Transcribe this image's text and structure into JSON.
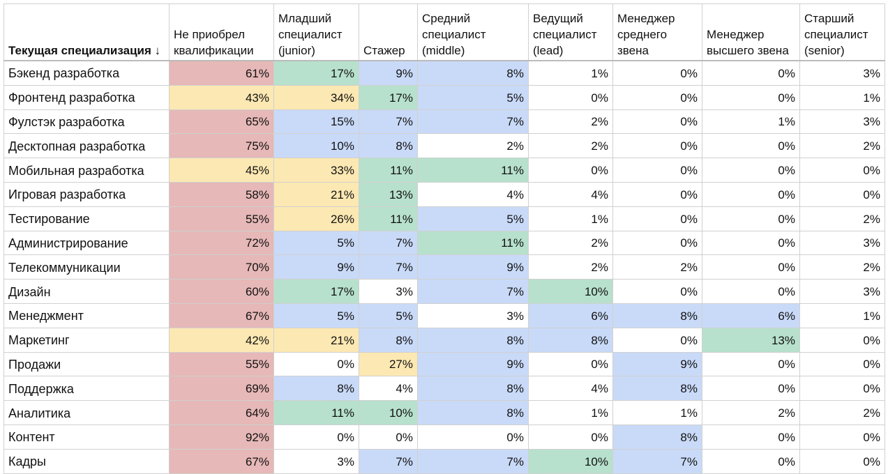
{
  "table": {
    "header": [
      "Текущая специализация ↓",
      "Не приобрел квалификации",
      "Младший специалист (junior)",
      "Стажер",
      "Средний специалист (middle)",
      "Ведущий специалист (lead)",
      "Менеджер среднего звена",
      "Менеджер высшего звена",
      "Старший специалист (senior)"
    ],
    "rows": [
      {
        "label": "Бэкенд разработка",
        "cells": [
          "61%",
          "17%",
          "9%",
          "8%",
          "1%",
          "0%",
          "0%",
          "3%"
        ],
        "colors": [
          "#e6b8b7",
          "#b7e1cd",
          "#c9daf8",
          "#c9daf8",
          "#ffffff",
          "#ffffff",
          "#ffffff",
          "#ffffff"
        ]
      },
      {
        "label": "Фронтенд разработка",
        "cells": [
          "43%",
          "34%",
          "17%",
          "5%",
          "0%",
          "0%",
          "0%",
          "1%"
        ],
        "colors": [
          "#fce8b2",
          "#fce8b2",
          "#b7e1cd",
          "#c9daf8",
          "#ffffff",
          "#ffffff",
          "#ffffff",
          "#ffffff"
        ]
      },
      {
        "label": "Фулстэк разработка",
        "cells": [
          "65%",
          "15%",
          "7%",
          "7%",
          "2%",
          "0%",
          "1%",
          "3%"
        ],
        "colors": [
          "#e6b8b7",
          "#c9daf8",
          "#c9daf8",
          "#c9daf8",
          "#ffffff",
          "#ffffff",
          "#ffffff",
          "#ffffff"
        ]
      },
      {
        "label": "Десктопная разработка",
        "cells": [
          "75%",
          "10%",
          "8%",
          "2%",
          "2%",
          "0%",
          "0%",
          "2%"
        ],
        "colors": [
          "#e6b8b7",
          "#c9daf8",
          "#c9daf8",
          "#ffffff",
          "#ffffff",
          "#ffffff",
          "#ffffff",
          "#ffffff"
        ]
      },
      {
        "label": "Мобильная разработка",
        "cells": [
          "45%",
          "33%",
          "11%",
          "11%",
          "0%",
          "0%",
          "0%",
          "0%"
        ],
        "colors": [
          "#fce8b2",
          "#fce8b2",
          "#b7e1cd",
          "#b7e1cd",
          "#ffffff",
          "#ffffff",
          "#ffffff",
          "#ffffff"
        ]
      },
      {
        "label": "Игровая разработка",
        "cells": [
          "58%",
          "21%",
          "13%",
          "4%",
          "4%",
          "0%",
          "0%",
          "0%"
        ],
        "colors": [
          "#e6b8b7",
          "#fce8b2",
          "#b7e1cd",
          "#ffffff",
          "#ffffff",
          "#ffffff",
          "#ffffff",
          "#ffffff"
        ]
      },
      {
        "label": "Тестирование",
        "cells": [
          "55%",
          "26%",
          "11%",
          "5%",
          "1%",
          "0%",
          "0%",
          "2%"
        ],
        "colors": [
          "#e6b8b7",
          "#fce8b2",
          "#b7e1cd",
          "#c9daf8",
          "#ffffff",
          "#ffffff",
          "#ffffff",
          "#ffffff"
        ]
      },
      {
        "label": "Администрирование",
        "cells": [
          "72%",
          "5%",
          "7%",
          "11%",
          "2%",
          "0%",
          "0%",
          "3%"
        ],
        "colors": [
          "#e6b8b7",
          "#c9daf8",
          "#c9daf8",
          "#b7e1cd",
          "#ffffff",
          "#ffffff",
          "#ffffff",
          "#ffffff"
        ]
      },
      {
        "label": "Телекоммуникации",
        "cells": [
          "70%",
          "9%",
          "7%",
          "9%",
          "2%",
          "2%",
          "0%",
          "2%"
        ],
        "colors": [
          "#e6b8b7",
          "#c9daf8",
          "#c9daf8",
          "#c9daf8",
          "#ffffff",
          "#ffffff",
          "#ffffff",
          "#ffffff"
        ]
      },
      {
        "label": "Дизайн",
        "cells": [
          "60%",
          "17%",
          "3%",
          "7%",
          "10%",
          "0%",
          "0%",
          "3%"
        ],
        "colors": [
          "#e6b8b7",
          "#b7e1cd",
          "#ffffff",
          "#c9daf8",
          "#b7e1cd",
          "#ffffff",
          "#ffffff",
          "#ffffff"
        ]
      },
      {
        "label": "Менеджмент",
        "cells": [
          "67%",
          "5%",
          "5%",
          "3%",
          "6%",
          "8%",
          "6%",
          "1%"
        ],
        "colors": [
          "#e6b8b7",
          "#c9daf8",
          "#c9daf8",
          "#ffffff",
          "#c9daf8",
          "#c9daf8",
          "#c9daf8",
          "#ffffff"
        ]
      },
      {
        "label": "Маркетинг",
        "cells": [
          "42%",
          "21%",
          "8%",
          "8%",
          "8%",
          "0%",
          "13%",
          "0%"
        ],
        "colors": [
          "#fce8b2",
          "#fce8b2",
          "#c9daf8",
          "#c9daf8",
          "#c9daf8",
          "#ffffff",
          "#b7e1cd",
          "#ffffff"
        ]
      },
      {
        "label": "Продажи",
        "cells": [
          "55%",
          "0%",
          "27%",
          "9%",
          "0%",
          "9%",
          "0%",
          "0%"
        ],
        "colors": [
          "#e6b8b7",
          "#ffffff",
          "#fce8b2",
          "#c9daf8",
          "#ffffff",
          "#c9daf8",
          "#ffffff",
          "#ffffff"
        ]
      },
      {
        "label": "Поддержка",
        "cells": [
          "69%",
          "8%",
          "4%",
          "8%",
          "4%",
          "8%",
          "0%",
          "0%"
        ],
        "colors": [
          "#e6b8b7",
          "#c9daf8",
          "#ffffff",
          "#c9daf8",
          "#ffffff",
          "#c9daf8",
          "#ffffff",
          "#ffffff"
        ]
      },
      {
        "label": "Аналитика",
        "cells": [
          "64%",
          "11%",
          "10%",
          "8%",
          "1%",
          "1%",
          "2%",
          "2%"
        ],
        "colors": [
          "#e6b8b7",
          "#b7e1cd",
          "#b7e1cd",
          "#c9daf8",
          "#ffffff",
          "#ffffff",
          "#ffffff",
          "#ffffff"
        ]
      },
      {
        "label": "Контент",
        "cells": [
          "92%",
          "0%",
          "0%",
          "0%",
          "0%",
          "8%",
          "0%",
          "0%"
        ],
        "colors": [
          "#e6b8b7",
          "#ffffff",
          "#ffffff",
          "#ffffff",
          "#ffffff",
          "#c9daf8",
          "#ffffff",
          "#ffffff"
        ]
      },
      {
        "label": "Кадры",
        "cells": [
          "67%",
          "3%",
          "7%",
          "7%",
          "10%",
          "7%",
          "0%",
          "0%"
        ],
        "colors": [
          "#e6b8b7",
          "#ffffff",
          "#c9daf8",
          "#c9daf8",
          "#b7e1cd",
          "#c9daf8",
          "#ffffff",
          "#ffffff"
        ]
      }
    ]
  }
}
